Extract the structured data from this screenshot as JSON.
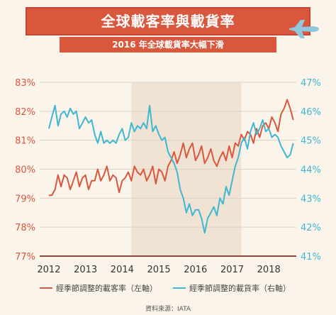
{
  "header": {
    "title": "全球載客率與載貨率",
    "subtitle": "2016 年全球載貨率大幅下滑"
  },
  "footer": {
    "source": "資料來源：IATA"
  },
  "colors": {
    "passenger": "#d9573d",
    "cargo": "#3fb7d2",
    "banner": "#d9573d",
    "highlight": "#f0e3d4"
  },
  "chart_data": {
    "type": "line",
    "title": "全球載客率與載貨率",
    "subtitle": "2016 年全球載貨率大幅下滑",
    "x_ticks": [
      "2012",
      "2013",
      "2014",
      "2015",
      "2016",
      "2017",
      "2018"
    ],
    "y_left": {
      "ticks": [
        "77%",
        "78%",
        "79%",
        "80%",
        "81%",
        "82%",
        "83%"
      ],
      "range": [
        77,
        83
      ]
    },
    "y_right": {
      "ticks": [
        "41%",
        "42%",
        "43%",
        "44%",
        "45%",
        "46%",
        "47%"
      ],
      "range": [
        41,
        47
      ]
    },
    "x_range": [
      2011.75,
      2018.75
    ],
    "shaded_period": [
      2014.25,
      2017.25
    ],
    "grid": "horizontal",
    "series": [
      {
        "name": "經季節調整的載客率（左軸）",
        "axis": "left",
        "color": "#d9573d",
        "x": [
          2012.0,
          2012.083,
          2012.167,
          2012.25,
          2012.333,
          2012.417,
          2012.5,
          2012.583,
          2012.667,
          2012.75,
          2012.833,
          2012.917,
          2013.0,
          2013.083,
          2013.167,
          2013.25,
          2013.333,
          2013.417,
          2013.5,
          2013.583,
          2013.667,
          2013.75,
          2013.833,
          2013.917,
          2014.0,
          2014.083,
          2014.167,
          2014.25,
          2014.333,
          2014.417,
          2014.5,
          2014.583,
          2014.667,
          2014.75,
          2014.833,
          2014.917,
          2015.0,
          2015.083,
          2015.167,
          2015.25,
          2015.333,
          2015.417,
          2015.5,
          2015.583,
          2015.667,
          2015.75,
          2015.833,
          2015.917,
          2016.0,
          2016.083,
          2016.167,
          2016.25,
          2016.333,
          2016.417,
          2016.5,
          2016.583,
          2016.667,
          2016.75,
          2016.833,
          2016.917,
          2017.0,
          2017.083,
          2017.167,
          2017.25,
          2017.333,
          2017.417,
          2017.5,
          2017.583,
          2017.667,
          2017.75,
          2017.833,
          2017.917,
          2018.0,
          2018.083,
          2018.167,
          2018.25,
          2018.333,
          2018.417
        ],
        "values": [
          79.1,
          79.1,
          79.3,
          79.8,
          79.4,
          79.8,
          79.7,
          79.3,
          79.6,
          79.9,
          79.4,
          79.7,
          79.8,
          79.3,
          79.6,
          79.6,
          80.0,
          79.6,
          79.8,
          80.1,
          79.6,
          79.8,
          79.7,
          79.2,
          79.6,
          79.7,
          79.9,
          79.6,
          80.1,
          79.9,
          79.8,
          80.0,
          79.6,
          79.8,
          80.1,
          79.5,
          80.0,
          79.9,
          79.6,
          80.1,
          80.3,
          80.6,
          80.2,
          80.5,
          80.9,
          80.4,
          80.7,
          80.9,
          80.3,
          80.5,
          80.8,
          80.2,
          80.4,
          80.7,
          80.3,
          80.1,
          80.4,
          80.6,
          80.3,
          80.8,
          80.4,
          80.9,
          80.8,
          81.2,
          81.0,
          81.3,
          81.2,
          80.9,
          81.4,
          81.1,
          81.5,
          81.6,
          81.4,
          81.8,
          81.6,
          81.3,
          81.9,
          82.1
        ],
        "extra_x": [
          2018.5,
          2018.583,
          2018.667
        ],
        "extra_values": [
          82.4,
          82.1,
          81.7
        ]
      },
      {
        "name": "經季節調整的載貨率（右軸）",
        "axis": "right",
        "color": "#3fb7d2",
        "x": [
          2012.0,
          2012.083,
          2012.167,
          2012.25,
          2012.333,
          2012.417,
          2012.5,
          2012.583,
          2012.667,
          2012.75,
          2012.833,
          2012.917,
          2013.0,
          2013.083,
          2013.167,
          2013.25,
          2013.333,
          2013.417,
          2013.5,
          2013.583,
          2013.667,
          2013.75,
          2013.833,
          2013.917,
          2014.0,
          2014.083,
          2014.167,
          2014.25,
          2014.333,
          2014.417,
          2014.5,
          2014.583,
          2014.667,
          2014.75,
          2014.833,
          2014.917,
          2015.0,
          2015.083,
          2015.167,
          2015.25,
          2015.333,
          2015.417,
          2015.5,
          2015.583,
          2015.667,
          2015.75,
          2015.833,
          2015.917,
          2016.0,
          2016.083,
          2016.167,
          2016.25,
          2016.333,
          2016.417,
          2016.5,
          2016.583,
          2016.667,
          2016.75,
          2016.833,
          2016.917,
          2017.0,
          2017.083,
          2017.167,
          2017.25,
          2017.333,
          2017.417,
          2017.5,
          2017.583,
          2017.667,
          2017.75,
          2017.833,
          2017.917,
          2018.0,
          2018.083,
          2018.167,
          2018.25,
          2018.333,
          2018.417
        ],
        "values": [
          45.4,
          45.8,
          46.2,
          45.5,
          45.9,
          46.0,
          45.8,
          46.1,
          45.9,
          46.0,
          45.4,
          45.6,
          45.8,
          45.6,
          45.7,
          45.2,
          44.9,
          45.3,
          44.9,
          45.0,
          44.9,
          45.0,
          44.9,
          45.2,
          45.4,
          45.0,
          45.1,
          45.6,
          45.3,
          45.5,
          45.4,
          45.6,
          45.4,
          46.2,
          45.3,
          45.5,
          45.2,
          45.0,
          45.1,
          44.6,
          44.4,
          44.2,
          43.9,
          43.3,
          43.0,
          42.5,
          42.8,
          42.4,
          42.6,
          42.6,
          42.3,
          41.8,
          42.3,
          42.5,
          42.7,
          42.4,
          43.0,
          42.8,
          43.4,
          43.1,
          43.6,
          44.1,
          44.4,
          44.9,
          45.1,
          44.7,
          45.3,
          45.6,
          45.2,
          45.4,
          45.7,
          45.3,
          45.4,
          45.1,
          45.2,
          45.1,
          44.8,
          44.6
        ],
        "extra_x": [
          2018.5,
          2018.583,
          2018.667
        ],
        "extra_values": [
          44.4,
          44.5,
          44.9
        ]
      }
    ]
  }
}
